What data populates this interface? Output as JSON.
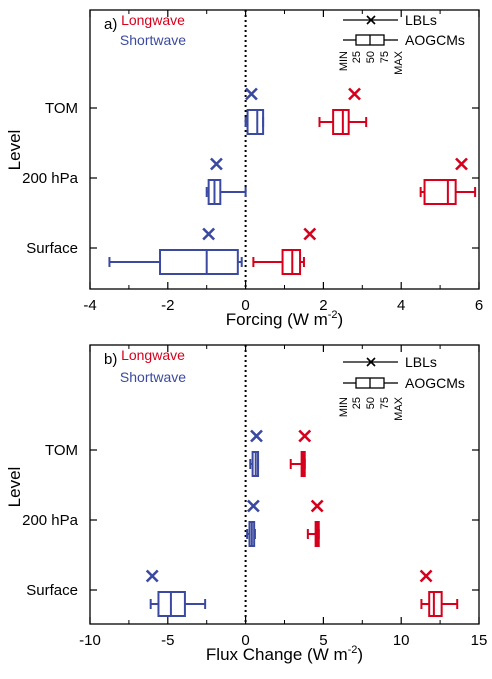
{
  "colors": {
    "longwave": "#d6001c",
    "shortwave": "#3b4aa0",
    "axis": "#000000"
  },
  "chart_data": [
    {
      "type": "boxplot",
      "panel_label": "a)",
      "title": "",
      "xlabel_base": "Forcing (W m",
      "xlabel_sup": "-2",
      "xlabel_tail": ")",
      "ylabel": "Level",
      "xlim": [
        -4,
        6
      ],
      "xticks": [
        -4,
        -2,
        0,
        2,
        4,
        6
      ],
      "xtick_labels": [
        "-4",
        "-2",
        "0",
        "2",
        "4",
        "6"
      ],
      "levels": [
        "TOM",
        "200 hPa",
        "Surface"
      ],
      "legend": {
        "longwave": "Longwave",
        "shortwave": "Shortwave",
        "lbl": "LBLs",
        "aogcm": "AOGCMs",
        "key_labels": [
          "MIN",
          "25",
          "50",
          "75",
          "MAX"
        ]
      },
      "series": [
        {
          "name": "Longwave",
          "color_key": "longwave",
          "data": [
            {
              "level": "TOM",
              "min": 1.9,
              "q1": 2.25,
              "median": 2.5,
              "q3": 2.65,
              "max": 3.1,
              "lbl": 2.8
            },
            {
              "level": "200 hPa",
              "min": 4.5,
              "q1": 4.6,
              "median": 5.2,
              "q3": 5.4,
              "max": 5.9,
              "lbl": 5.55
            },
            {
              "level": "Surface",
              "min": 0.2,
              "q1": 0.95,
              "median": 1.2,
              "q3": 1.4,
              "max": 1.5,
              "lbl": 1.65
            }
          ]
        },
        {
          "name": "Shortwave",
          "color_key": "shortwave",
          "data": [
            {
              "level": "TOM",
              "min": 0.0,
              "q1": 0.05,
              "median": 0.3,
              "q3": 0.45,
              "max": 0.45,
              "lbl": 0.15
            },
            {
              "level": "200 hPa",
              "min": -1.0,
              "q1": -0.95,
              "median": -0.8,
              "q3": -0.65,
              "max": 0.0,
              "lbl": -0.75
            },
            {
              "level": "Surface",
              "min": -3.5,
              "q1": -2.2,
              "median": -1.0,
              "q3": -0.2,
              "max": -0.1,
              "lbl": -0.95
            }
          ]
        }
      ]
    },
    {
      "type": "boxplot",
      "panel_label": "b)",
      "title": "",
      "xlabel_base": "Flux Change (W m",
      "xlabel_sup": "-2",
      "xlabel_tail": ")",
      "ylabel": "Level",
      "xlim": [
        -10,
        15
      ],
      "xticks": [
        -10,
        -5,
        0,
        5,
        10,
        15
      ],
      "xtick_labels": [
        "-10",
        "-5",
        "0",
        "5",
        "10",
        "15"
      ],
      "levels": [
        "TOM",
        "200 hPa",
        "Surface"
      ],
      "legend": {
        "longwave": "Longwave",
        "shortwave": "Shortwave",
        "lbl": "LBLs",
        "aogcm": "AOGCMs",
        "key_labels": [
          "MIN",
          "25",
          "50",
          "75",
          "MAX"
        ]
      },
      "series": [
        {
          "name": "Longwave",
          "color_key": "longwave",
          "data": [
            {
              "level": "TOM",
              "min": 2.9,
              "q1": 3.6,
              "median": 3.7,
              "q3": 3.8,
              "max": 3.8,
              "lbl": 3.8
            },
            {
              "level": "200 hPa",
              "min": 4.0,
              "q1": 4.5,
              "median": 4.6,
              "q3": 4.7,
              "max": 4.7,
              "lbl": 4.6
            },
            {
              "level": "Surface",
              "min": 11.3,
              "q1": 11.8,
              "median": 12.1,
              "q3": 12.6,
              "max": 13.6,
              "lbl": 11.6
            }
          ]
        },
        {
          "name": "Shortwave",
          "color_key": "shortwave",
          "data": [
            {
              "level": "TOM",
              "min": 0.3,
              "q1": 0.45,
              "median": 0.65,
              "q3": 0.8,
              "max": 0.8,
              "lbl": 0.7
            },
            {
              "level": "200 hPa",
              "min": 0.1,
              "q1": 0.25,
              "median": 0.4,
              "q3": 0.55,
              "max": 0.6,
              "lbl": 0.5
            },
            {
              "level": "Surface",
              "min": -6.1,
              "q1": -5.6,
              "median": -4.8,
              "q3": -3.9,
              "max": -2.6,
              "lbl": -6.0
            }
          ]
        }
      ]
    }
  ]
}
